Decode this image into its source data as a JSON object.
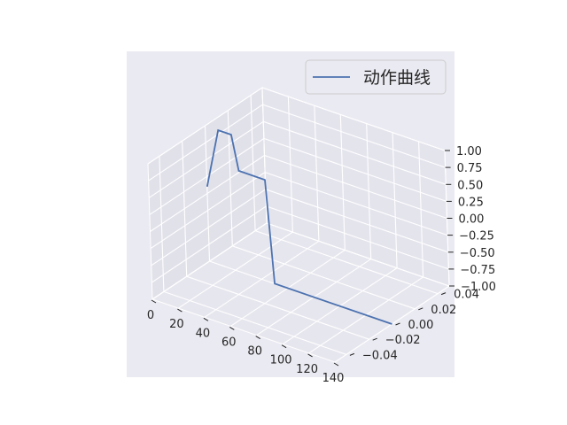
{
  "chart_data": {
    "type": "line",
    "projection": "3d",
    "title": "",
    "xlabel": "",
    "ylabel": "",
    "zlabel": "",
    "xlim": [
      0,
      140
    ],
    "ylim": [
      -0.05,
      0.05
    ],
    "zlim": [
      -1.0,
      1.0
    ],
    "x_ticks": [
      "0",
      "20",
      "40",
      "60",
      "80",
      "100",
      "120",
      "140"
    ],
    "y_ticks": [
      "−0.04",
      "−0.02",
      "0.00",
      "0.02",
      "0.04"
    ],
    "z_ticks": [
      "−1.00",
      "−0.75",
      "−0.50",
      "−0.25",
      "0.00",
      "0.25",
      "0.50",
      "0.75",
      "1.00"
    ],
    "grid": true,
    "legend_position": "top-right",
    "series": [
      {
        "name": "动作曲线",
        "color": "#4c72b0",
        "points": [
          {
            "x": 0,
            "y": 0,
            "z": 0.1
          },
          {
            "x": 10,
            "y": 0,
            "z": 1.0
          },
          {
            "x": 20,
            "y": 0,
            "z": 1.0
          },
          {
            "x": 25,
            "y": 0,
            "z": 0.5
          },
          {
            "x": 45,
            "y": 0,
            "z": 0.5
          },
          {
            "x": 50,
            "y": 0,
            "z": -1.0
          },
          {
            "x": 140,
            "y": 0,
            "z": -1.0
          }
        ]
      }
    ]
  }
}
